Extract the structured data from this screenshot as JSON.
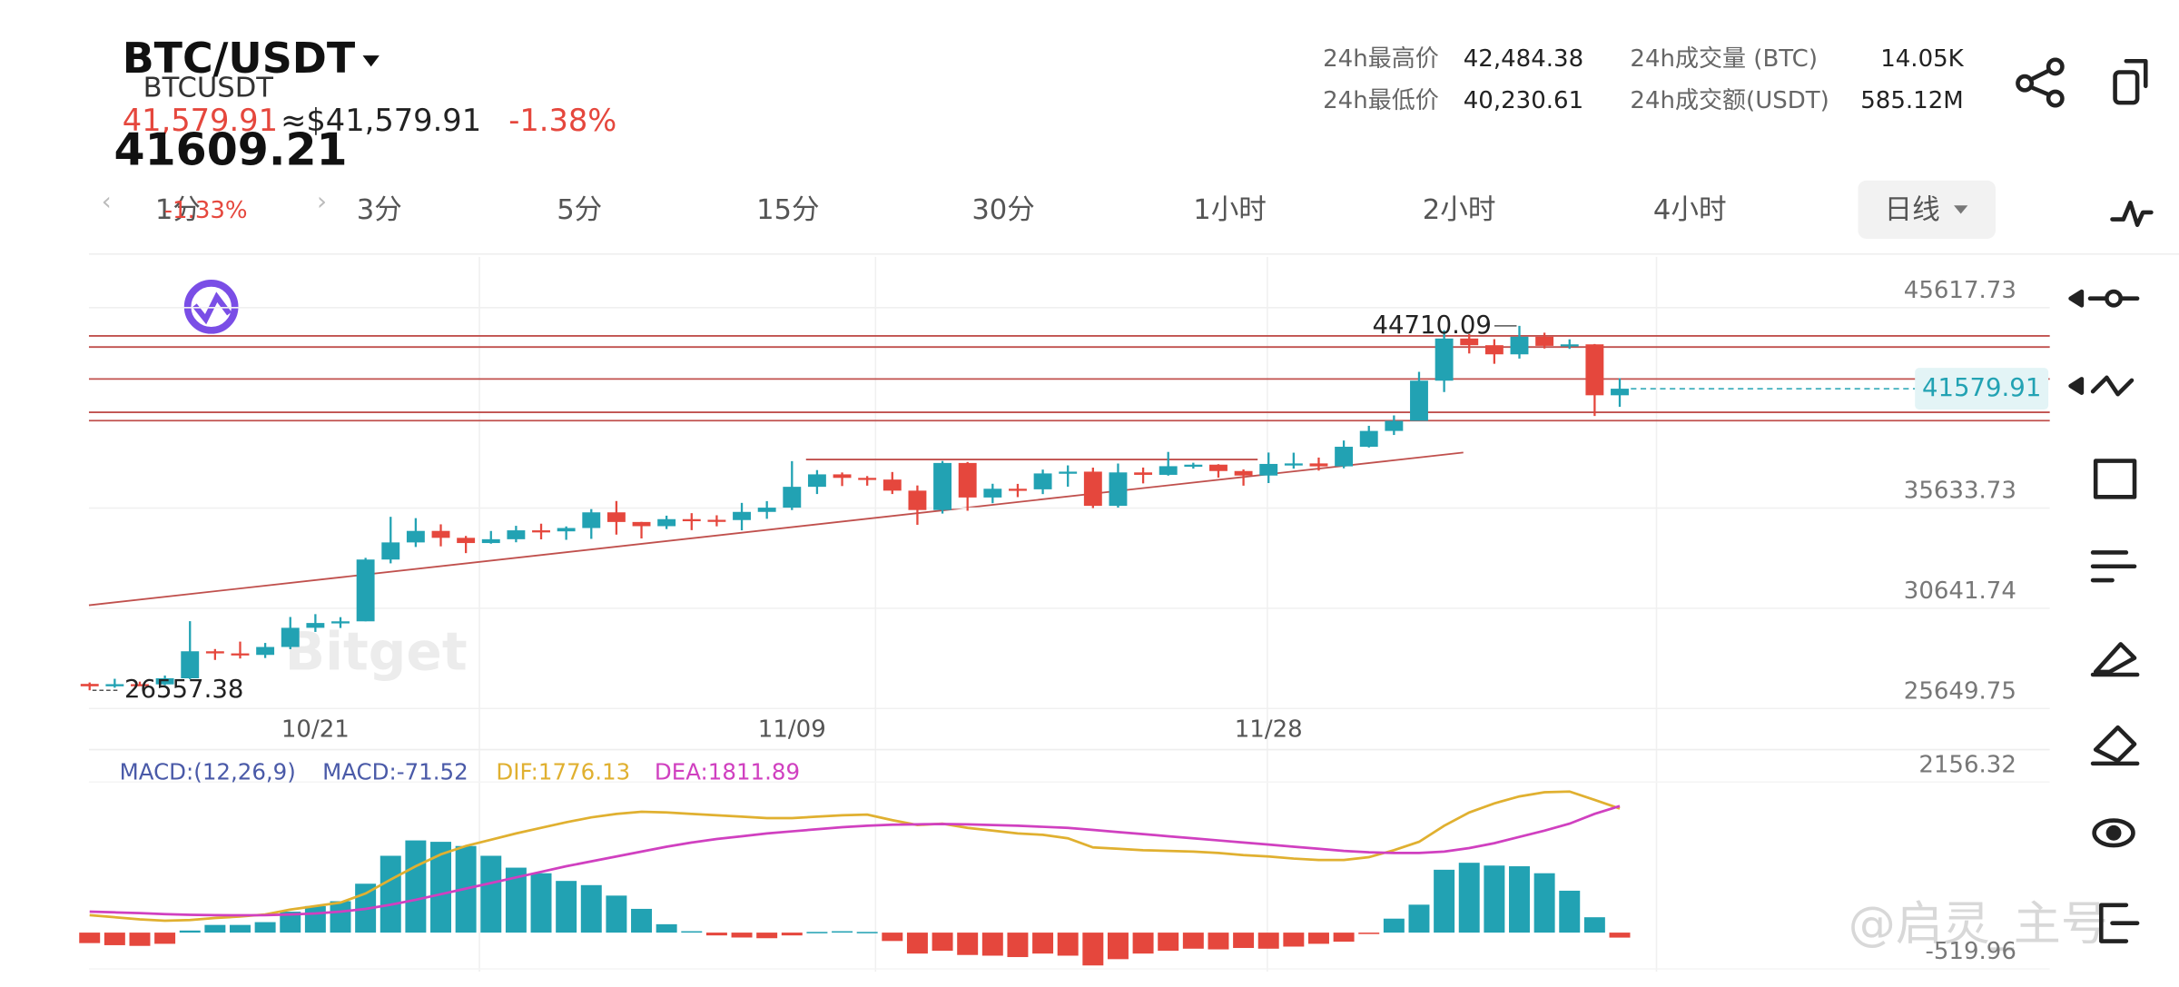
{
  "header": {
    "pair": "BTC/USDT",
    "symbol": "BTCUSDT",
    "price": "41,579.91",
    "usd_price": "≈$41,579.91",
    "change": "-1.38%",
    "overlay_price": "41609.21"
  },
  "stats": [
    {
      "label": "24h最高价",
      "value": "42,484.38"
    },
    {
      "label": "24h最低价",
      "value": "40,230.61"
    },
    {
      "label": "24h成交量 (BTC)",
      "value": "14.05K"
    },
    {
      "label": "24h成交额(USDT)",
      "value": "585.12M"
    }
  ],
  "timeframes": [
    "1分",
    "3分",
    "5分",
    "15分",
    "30分",
    "1小时",
    "2小时",
    "4小时",
    "日线"
  ],
  "tab_overlay": "-1.33%",
  "watermarks": [
    "Bitget",
    "@启灵_主号"
  ],
  "chart_data": [
    {
      "type": "candlestick",
      "up_color": "#22a2b3",
      "down_color": "#e5473d",
      "grid": true,
      "categories": [
        null,
        null,
        null,
        null,
        null,
        null,
        null,
        null,
        null,
        "10/21",
        null,
        null,
        null,
        null,
        null,
        null,
        null,
        null,
        null,
        null,
        null,
        null,
        null,
        null,
        null,
        null,
        null,
        null,
        "11/09",
        null,
        null,
        null,
        null,
        null,
        null,
        null,
        null,
        null,
        null,
        null,
        null,
        null,
        null,
        null,
        null,
        null,
        null,
        "11/28",
        null,
        null,
        null,
        null,
        null,
        null,
        null,
        null,
        null,
        null,
        null,
        null,
        null,
        null
      ],
      "open": [
        26875,
        26756,
        26862,
        26852,
        27154,
        28500,
        28395,
        28320,
        28714,
        29669,
        29909,
        29992,
        33070,
        33923,
        34496,
        34151,
        33892,
        34082,
        34525,
        34474,
        34640,
        35421,
        34941,
        34732,
        35082,
        35049,
        35037,
        35443,
        35655,
        36693,
        37313,
        37138,
        37054,
        36502,
        35537,
        37880,
        36161,
        36596,
        36568,
        37359,
        37448,
        35745,
        37410,
        37289,
        37720,
        37796,
        37479,
        37254,
        37832,
        37858,
        37712,
        38688,
        39476,
        39978,
        41980,
        44080,
        43747,
        43292,
        44170,
        43714,
        43789,
        41253
      ],
      "high": [
        26947,
        27130,
        26989,
        27293,
        30000,
        28612,
        28982,
        28916,
        30208,
        30350,
        30200,
        33155,
        35198,
        35132,
        34824,
        34245,
        34493,
        34750,
        34856,
        34720,
        35582,
        35985,
        34947,
        35255,
        35380,
        35275,
        35892,
        35980,
        37972,
        37526,
        37407,
        37228,
        37430,
        36760,
        37980,
        37930,
        36845,
        36839,
        37550,
        37760,
        37649,
        37852,
        37653,
        38431,
        37892,
        37820,
        37559,
        38400,
        38392,
        38150,
        38999,
        39731,
        40250,
        42420,
        44488,
        44300,
        44047,
        44710.09,
        44370,
        44040,
        43805,
        42105
      ],
      "low": [
        26557.38,
        26685,
        26777,
        26808,
        27113,
        28069,
        28140,
        28165,
        28603,
        29464,
        29660,
        29992,
        32880,
        33695,
        33727,
        33390,
        33860,
        33930,
        34077,
        34052,
        34100,
        34312,
        34120,
        34588,
        34534,
        34725,
        34525,
        35100,
        35535,
        36333,
        36731,
        36750,
        36333,
        34800,
        35360,
        35500,
        35875,
        36180,
        36330,
        36700,
        35632,
        35655,
        36864,
        37250,
        37599,
        37151,
        36750,
        36880,
        37600,
        37500,
        37615,
        38651,
        39275,
        39978,
        41417,
        43335,
        42821,
        43081,
        43583,
        43564,
        40222,
        40680
      ],
      "close": [
        26756,
        26862,
        26852,
        27154,
        28500,
        28395,
        28320,
        28714,
        29669,
        29909,
        29992,
        33070,
        33923,
        34496,
        34151,
        33892,
        34082,
        34525,
        34474,
        34640,
        35421,
        34941,
        34732,
        35082,
        35049,
        35037,
        35443,
        35655,
        36693,
        37313,
        37138,
        37054,
        36502,
        35537,
        37880,
        36161,
        36596,
        36568,
        37359,
        37448,
        35745,
        37410,
        37289,
        37720,
        37796,
        37479,
        37254,
        37832,
        37858,
        37712,
        38688,
        39476,
        39978,
        41980,
        44080,
        43747,
        43292,
        44170,
        43714,
        43789,
        41253,
        41579.91
      ],
      "ylim": [
        25330,
        48150
      ],
      "yticks": [
        25649.75,
        30641.74,
        35633.73,
        45617.73
      ]
    },
    {
      "type": "macd",
      "title": "MACD:(12,26,9)",
      "up_color": "#22a2b3",
      "down_color": "#e5473d",
      "series": [
        {
          "name": "MACD:-71.52",
          "color": "#4a5aa8",
          "values": [
            -150,
            -180,
            -190,
            -160,
            30,
            110,
            110,
            150,
            300,
            380,
            450,
            700,
            1100,
            1320,
            1300,
            1240,
            1100,
            930,
            850,
            740,
            680,
            530,
            340,
            120,
            20,
            -40,
            -70,
            -80,
            -40,
            10,
            20,
            10,
            -120,
            -300,
            -260,
            -320,
            -330,
            -350,
            -300,
            -330,
            -470,
            -380,
            -300,
            -260,
            -230,
            -240,
            -220,
            -230,
            -200,
            -160,
            -130,
            -20,
            200,
            400,
            900,
            1000,
            960,
            950,
            850,
            600,
            220,
            -71.52
          ]
        },
        {
          "name": "DIF:1776.13",
          "color": "#e0b030",
          "values": [
            250,
            220,
            190,
            170,
            180,
            210,
            230,
            260,
            330,
            380,
            430,
            560,
            760,
            950,
            1120,
            1240,
            1330,
            1420,
            1500,
            1580,
            1650,
            1700,
            1730,
            1720,
            1700,
            1680,
            1660,
            1640,
            1640,
            1660,
            1680,
            1690,
            1610,
            1540,
            1560,
            1500,
            1460,
            1420,
            1400,
            1350,
            1220,
            1200,
            1180,
            1170,
            1160,
            1140,
            1110,
            1090,
            1060,
            1040,
            1040,
            1080,
            1180,
            1300,
            1530,
            1720,
            1850,
            1950,
            2010,
            2020,
            1900,
            1776.13
          ]
        },
        {
          "name": "DEA:1811.89",
          "color": "#d040c0",
          "values": [
            300,
            290,
            280,
            265,
            255,
            250,
            248,
            250,
            260,
            275,
            300,
            340,
            400,
            470,
            550,
            630,
            710,
            790,
            870,
            950,
            1020,
            1090,
            1160,
            1230,
            1290,
            1340,
            1380,
            1420,
            1450,
            1480,
            1510,
            1530,
            1545,
            1550,
            1555,
            1550,
            1540,
            1530,
            1515,
            1500,
            1470,
            1440,
            1410,
            1380,
            1350,
            1320,
            1290,
            1260,
            1230,
            1200,
            1170,
            1150,
            1140,
            1140,
            1160,
            1210,
            1280,
            1370,
            1460,
            1560,
            1700,
            1811.89
          ]
        }
      ],
      "ylim": [
        -560,
        2600
      ],
      "yticks": [
        -519.96,
        2156.32
      ]
    }
  ]
}
